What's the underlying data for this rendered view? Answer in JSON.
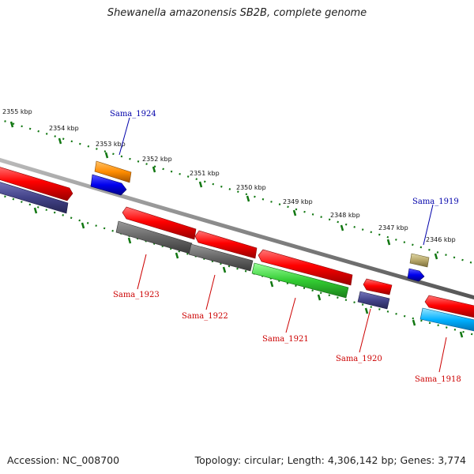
{
  "title": "Shewanella amazonensis SB2B, complete genome",
  "footer": {
    "accession": "Accession: NC_008700",
    "topology": "Topology: circular; Length: 4,306,142 bp; Genes: 3,774"
  },
  "scale_labels": [
    "2355 kbp",
    "2354 kbp",
    "2353 kbp",
    "2352 kbp",
    "2351 kbp",
    "2350 kbp",
    "2349 kbp",
    "2348 kbp",
    "2347 kbp",
    "2346 kbp"
  ],
  "gene_labels": {
    "sama_1924": "Sama_1924",
    "sama_1919": "Sama_1919",
    "sama_1923": "Sama_1923",
    "sama_1922": "Sama_1922",
    "sama_1921": "Sama_1921",
    "sama_1920": "Sama_1920",
    "sama_1918": "Sama_1918"
  },
  "colors": {
    "forward_label": "#0000aa",
    "reverse_label": "#cc0000",
    "cds": "#ff0000",
    "backbone": "#888888",
    "scale_dots": "#117711"
  }
}
